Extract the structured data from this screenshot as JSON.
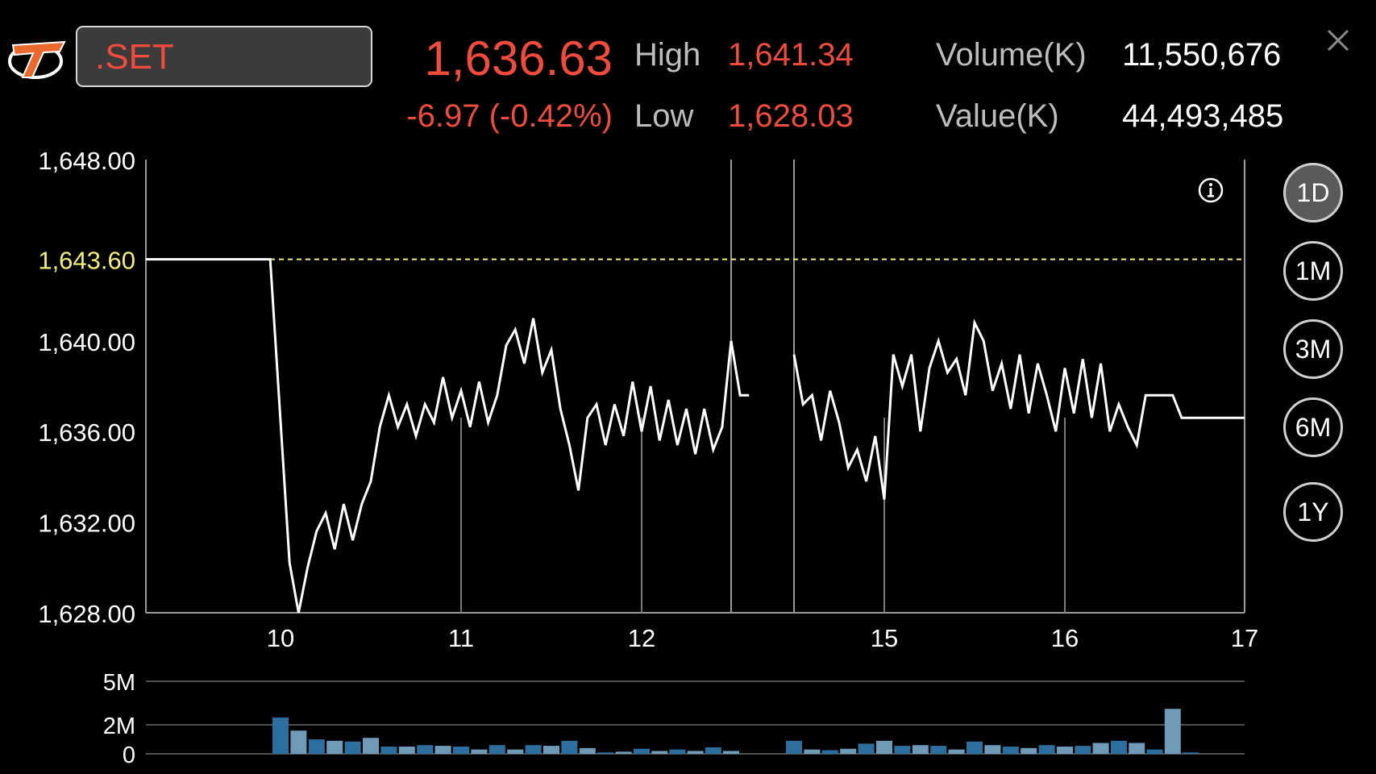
{
  "header": {
    "symbol": ".SET",
    "price": "1,636.63",
    "change": "-6.97 (-0.42%)",
    "high_label": "High",
    "high_value": "1,641.34",
    "low_label": "Low",
    "low_value": "1,628.03",
    "volume_label": "Volume(K)",
    "volume_value": "11,550,676",
    "value_label": "Value(K)",
    "value_value": "44,493,485"
  },
  "ranges": [
    {
      "label": "1D",
      "active": true
    },
    {
      "label": "1M",
      "active": false
    },
    {
      "label": "3M",
      "active": false
    },
    {
      "label": "6M",
      "active": false
    },
    {
      "label": "1Y",
      "active": false
    }
  ],
  "colors": {
    "accent_red": "#f04b3c",
    "prev_close": "#f5f07a",
    "volume_bar_dark": "#2c6e9e",
    "volume_bar_light": "#6f9bb8"
  },
  "icons": {
    "logo": "brand-logo",
    "info": "info-icon",
    "close": "close-icon"
  },
  "chart_data": [
    {
      "type": "line",
      "ylim": [
        1628,
        1648
      ],
      "y_ticks": [
        "1,628.00",
        "1,632.00",
        "1,636.00",
        "1,640.00",
        "1,648.00"
      ],
      "x_ticks": [
        "10",
        "11",
        "12",
        "15",
        "16",
        "17"
      ],
      "grid": true,
      "previous_close": {
        "label": "1,643.60",
        "value": 1643.6
      },
      "series": [
        {
          "values": [
            [
              9.35,
              1643.6
            ],
            [
              9.95,
              1643.6
            ],
            [
              10.05,
              1630.2
            ],
            [
              10.1,
              1628.0
            ],
            [
              10.15,
              1630.0
            ],
            [
              10.2,
              1631.6
            ],
            [
              10.25,
              1632.4
            ],
            [
              10.3,
              1630.8
            ],
            [
              10.35,
              1632.8
            ],
            [
              10.4,
              1631.2
            ],
            [
              10.45,
              1632.8
            ],
            [
              10.5,
              1633.8
            ],
            [
              10.55,
              1636.2
            ],
            [
              10.6,
              1637.6
            ],
            [
              10.65,
              1636.2
            ],
            [
              10.7,
              1637.2
            ],
            [
              10.75,
              1635.8
            ],
            [
              10.8,
              1637.2
            ],
            [
              10.85,
              1636.4
            ],
            [
              10.9,
              1638.4
            ],
            [
              10.95,
              1636.6
            ],
            [
              11.0,
              1637.8
            ],
            [
              11.05,
              1636.2
            ],
            [
              11.1,
              1638.2
            ],
            [
              11.15,
              1636.4
            ],
            [
              11.2,
              1637.6
            ],
            [
              11.25,
              1639.8
            ],
            [
              11.3,
              1640.5
            ],
            [
              11.35,
              1639.0
            ],
            [
              11.4,
              1641.0
            ],
            [
              11.45,
              1638.6
            ],
            [
              11.5,
              1639.6
            ],
            [
              11.55,
              1637.0
            ],
            [
              11.6,
              1635.4
            ],
            [
              11.65,
              1633.4
            ],
            [
              11.7,
              1636.6
            ],
            [
              11.75,
              1637.2
            ],
            [
              11.8,
              1635.4
            ],
            [
              11.85,
              1637.2
            ],
            [
              11.9,
              1635.8
            ],
            [
              11.95,
              1638.2
            ],
            [
              12.0,
              1636.0
            ],
            [
              12.05,
              1638.0
            ],
            [
              12.1,
              1635.6
            ],
            [
              12.15,
              1637.4
            ],
            [
              12.2,
              1635.4
            ],
            [
              12.25,
              1637.0
            ],
            [
              12.3,
              1635.0
            ],
            [
              12.35,
              1637.0
            ],
            [
              12.4,
              1635.2
            ],
            [
              12.45,
              1636.2
            ],
            [
              12.5,
              1640.0
            ],
            [
              12.55,
              1637.6
            ],
            [
              12.6,
              1637.6
            ]
          ]
        },
        {
          "values": [
            [
              14.5,
              1639.4
            ],
            [
              14.55,
              1637.2
            ],
            [
              14.6,
              1637.6
            ],
            [
              14.65,
              1635.6
            ],
            [
              14.7,
              1637.8
            ],
            [
              14.75,
              1636.4
            ],
            [
              14.8,
              1634.4
            ],
            [
              14.85,
              1635.2
            ],
            [
              14.9,
              1633.8
            ],
            [
              14.95,
              1635.8
            ],
            [
              15.0,
              1633.0
            ],
            [
              15.05,
              1639.4
            ],
            [
              15.1,
              1638.0
            ],
            [
              15.15,
              1639.4
            ],
            [
              15.2,
              1636.0
            ],
            [
              15.25,
              1638.8
            ],
            [
              15.3,
              1640.0
            ],
            [
              15.35,
              1638.6
            ],
            [
              15.4,
              1639.2
            ],
            [
              15.45,
              1637.6
            ],
            [
              15.5,
              1640.8
            ],
            [
              15.55,
              1640.0
            ],
            [
              15.6,
              1637.8
            ],
            [
              15.65,
              1639.0
            ],
            [
              15.7,
              1637.0
            ],
            [
              15.75,
              1639.4
            ],
            [
              15.8,
              1636.8
            ],
            [
              15.85,
              1639.0
            ],
            [
              15.9,
              1637.6
            ],
            [
              15.95,
              1636.0
            ],
            [
              16.0,
              1638.8
            ],
            [
              16.05,
              1636.8
            ],
            [
              16.1,
              1639.2
            ],
            [
              16.15,
              1636.6
            ],
            [
              16.2,
              1639.0
            ],
            [
              16.25,
              1636.0
            ],
            [
              16.3,
              1637.2
            ],
            [
              16.35,
              1636.2
            ],
            [
              16.4,
              1635.4
            ],
            [
              16.45,
              1637.6
            ],
            [
              16.5,
              1637.6
            ],
            [
              16.6,
              1637.6
            ],
            [
              16.65,
              1636.6
            ],
            [
              17.0,
              1636.6
            ]
          ]
        }
      ]
    },
    {
      "type": "bar",
      "ylim": [
        0,
        5
      ],
      "y_ticks": [
        "0",
        "2M",
        "5M"
      ],
      "grid": true,
      "bars": [
        [
          10.0,
          2.5,
          "d"
        ],
        [
          10.1,
          1.6,
          "l"
        ],
        [
          10.2,
          1.0,
          "d"
        ],
        [
          10.3,
          0.9,
          "l"
        ],
        [
          10.4,
          0.85,
          "d"
        ],
        [
          10.5,
          1.1,
          "l"
        ],
        [
          10.6,
          0.5,
          "d"
        ],
        [
          10.7,
          0.5,
          "l"
        ],
        [
          10.8,
          0.6,
          "d"
        ],
        [
          10.9,
          0.55,
          "l"
        ],
        [
          11.0,
          0.5,
          "d"
        ],
        [
          11.1,
          0.3,
          "l"
        ],
        [
          11.2,
          0.6,
          "d"
        ],
        [
          11.3,
          0.3,
          "l"
        ],
        [
          11.4,
          0.6,
          "d"
        ],
        [
          11.5,
          0.55,
          "l"
        ],
        [
          11.6,
          0.9,
          "d"
        ],
        [
          11.7,
          0.4,
          "l"
        ],
        [
          11.8,
          0.1,
          "d"
        ],
        [
          11.9,
          0.15,
          "l"
        ],
        [
          12.0,
          0.35,
          "d"
        ],
        [
          12.1,
          0.2,
          "l"
        ],
        [
          12.2,
          0.3,
          "d"
        ],
        [
          12.3,
          0.2,
          "l"
        ],
        [
          12.4,
          0.45,
          "d"
        ],
        [
          12.5,
          0.2,
          "l"
        ],
        [
          14.5,
          0.9,
          "d"
        ],
        [
          14.6,
          0.3,
          "l"
        ],
        [
          14.7,
          0.25,
          "d"
        ],
        [
          14.8,
          0.35,
          "l"
        ],
        [
          14.9,
          0.7,
          "d"
        ],
        [
          15.0,
          0.9,
          "l"
        ],
        [
          15.1,
          0.55,
          "d"
        ],
        [
          15.2,
          0.6,
          "l"
        ],
        [
          15.3,
          0.55,
          "d"
        ],
        [
          15.4,
          0.3,
          "l"
        ],
        [
          15.5,
          0.85,
          "d"
        ],
        [
          15.6,
          0.6,
          "l"
        ],
        [
          15.7,
          0.5,
          "d"
        ],
        [
          15.8,
          0.4,
          "l"
        ],
        [
          15.9,
          0.6,
          "d"
        ],
        [
          16.0,
          0.5,
          "l"
        ],
        [
          16.1,
          0.55,
          "d"
        ],
        [
          16.2,
          0.75,
          "l"
        ],
        [
          16.3,
          0.9,
          "d"
        ],
        [
          16.4,
          0.75,
          "l"
        ],
        [
          16.5,
          0.3,
          "d"
        ],
        [
          16.6,
          3.1,
          "l"
        ],
        [
          16.7,
          0.1,
          "d"
        ]
      ]
    }
  ]
}
